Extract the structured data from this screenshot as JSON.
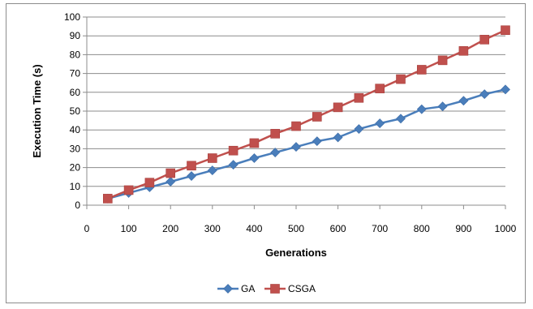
{
  "chart_data": {
    "type": "line",
    "title": "",
    "xlabel": "Generations",
    "ylabel": "Execution Time (s)",
    "xlim": [
      0,
      1000
    ],
    "ylim": [
      0,
      100
    ],
    "xticks": [
      0,
      100,
      200,
      300,
      400,
      500,
      600,
      700,
      800,
      900,
      1000
    ],
    "yticks": [
      0,
      10,
      20,
      30,
      40,
      50,
      60,
      70,
      80,
      90,
      100
    ],
    "grid": true,
    "legend_position": "bottom",
    "x": [
      50,
      100,
      150,
      200,
      250,
      300,
      350,
      400,
      450,
      500,
      550,
      600,
      650,
      700,
      750,
      800,
      850,
      900,
      950,
      1000
    ],
    "series": [
      {
        "name": "GA",
        "color": "#4a7ebb",
        "marker": "diamond",
        "values": [
          3.5,
          6.5,
          9.5,
          12.5,
          15.5,
          18.5,
          21.5,
          25,
          28,
          31,
          34,
          36,
          40.5,
          43.5,
          46,
          51,
          52.5,
          55.5,
          59,
          61.5
        ]
      },
      {
        "name": "CSGA",
        "color": "#c0504d",
        "marker": "square",
        "values": [
          3.5,
          8,
          12,
          17,
          21,
          25,
          29,
          33,
          38,
          42,
          47,
          52,
          57,
          62,
          67,
          72,
          77,
          82,
          88,
          93
        ]
      }
    ]
  }
}
